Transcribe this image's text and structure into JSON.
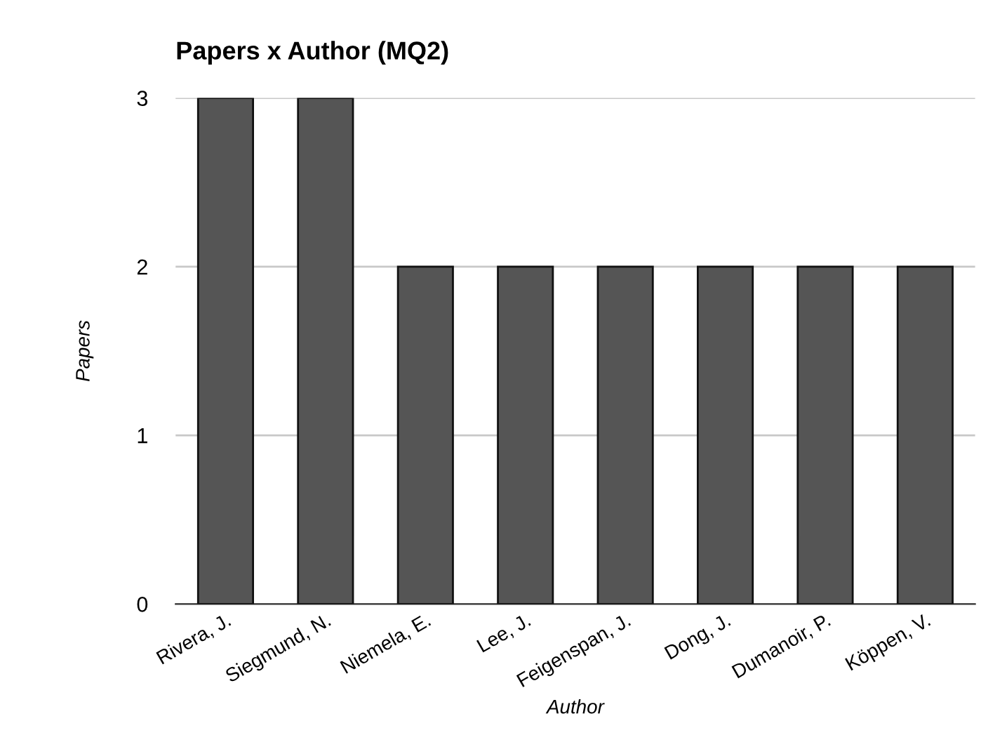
{
  "chart_data": {
    "type": "bar",
    "title": "Papers x Author (MQ2)",
    "xlabel": "Author",
    "ylabel": "Papers",
    "categories": [
      "Rivera, J.",
      "Siegmund, N.",
      "Niemela, E.",
      "Lee, J.",
      "Feigenspan, J.",
      "Dong, J.",
      "Dumanoir, P.",
      "Köppen, V."
    ],
    "values": [
      3,
      3,
      2,
      2,
      2,
      2,
      2,
      2
    ],
    "color": "#555555",
    "ylim": [
      0,
      3
    ],
    "yticks": [
      0,
      1,
      2,
      3
    ],
    "grid": "y",
    "legend": false
  }
}
